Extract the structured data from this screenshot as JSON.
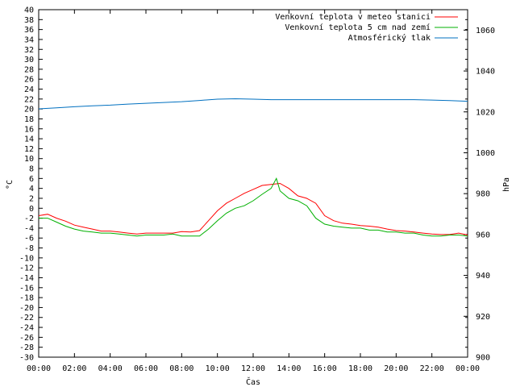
{
  "chart_data": {
    "type": "line",
    "xlabel": "Čas",
    "ylabel_left": "°C",
    "ylabel_right": "hPa",
    "x_ticks": [
      "00:00",
      "02:00",
      "04:00",
      "06:00",
      "08:00",
      "10:00",
      "12:00",
      "14:00",
      "16:00",
      "18:00",
      "20:00",
      "22:00",
      "00:00"
    ],
    "x_range": [
      0,
      24
    ],
    "ylim_left": [
      -30,
      40
    ],
    "ylim_right": [
      900,
      1070
    ],
    "y_left_ticks": [
      40,
      38,
      36,
      34,
      32,
      30,
      28,
      26,
      24,
      22,
      20,
      18,
      16,
      14,
      12,
      10,
      8,
      6,
      4,
      2,
      0,
      -2,
      -4,
      -6,
      -8,
      -10,
      -12,
      -14,
      -16,
      -18,
      -20,
      -22,
      -24,
      -26,
      -28,
      -30
    ],
    "y_right_ticks": [
      1060,
      1040,
      1020,
      1000,
      980,
      960,
      940,
      920,
      900
    ],
    "grid": false,
    "legend_position": "top-right",
    "series": [
      {
        "name": "Venkovní teplota v meteo stanici",
        "axis": "left",
        "color": "#ff0000",
        "x": [
          0,
          0.5,
          1,
          1.5,
          2,
          2.5,
          3,
          3.5,
          4,
          4.5,
          5,
          5.5,
          6,
          6.5,
          7,
          7.5,
          8,
          8.5,
          9,
          9.5,
          10,
          10.5,
          11,
          11.5,
          12,
          12.5,
          13,
          13.5,
          14,
          14.5,
          15,
          15.5,
          16,
          16.5,
          17,
          17.5,
          18,
          18.5,
          19,
          19.5,
          20,
          20.5,
          21,
          21.5,
          22,
          22.5,
          23,
          23.5,
          24
        ],
        "values": [
          -1.5,
          -1.2,
          -2.0,
          -2.6,
          -3.4,
          -3.8,
          -4.2,
          -4.6,
          -4.6,
          -4.8,
          -5.0,
          -5.2,
          -5.0,
          -5.0,
          -5.0,
          -5.0,
          -4.7,
          -4.8,
          -4.5,
          -2.5,
          -0.5,
          1.0,
          2.0,
          3.0,
          3.8,
          4.6,
          4.8,
          5.0,
          4.0,
          2.5,
          2.0,
          1.0,
          -1.5,
          -2.5,
          -3.0,
          -3.2,
          -3.5,
          -3.6,
          -3.8,
          -4.2,
          -4.5,
          -4.6,
          -4.8,
          -5.0,
          -5.2,
          -5.3,
          -5.3,
          -5.0,
          -5.4
        ]
      },
      {
        "name": "Venkovní teplota 5 cm nad zemí",
        "axis": "left",
        "color": "#00b000",
        "x": [
          0,
          0.5,
          1,
          1.5,
          2,
          2.5,
          3,
          3.5,
          4,
          4.5,
          5,
          5.5,
          6,
          6.5,
          7,
          7.5,
          8,
          8.5,
          9,
          9.5,
          10,
          10.5,
          11,
          11.5,
          12,
          12.5,
          13,
          13.3,
          13.5,
          14,
          14.5,
          15,
          15.5,
          16,
          16.5,
          17,
          17.5,
          18,
          18.5,
          19,
          19.5,
          20,
          20.5,
          21,
          21.5,
          22,
          22.5,
          23,
          23.5,
          24
        ],
        "values": [
          -2.0,
          -2.0,
          -2.8,
          -3.6,
          -4.2,
          -4.6,
          -4.8,
          -5.0,
          -5.0,
          -5.2,
          -5.4,
          -5.6,
          -5.4,
          -5.4,
          -5.4,
          -5.2,
          -5.6,
          -5.6,
          -5.6,
          -4.2,
          -2.5,
          -1.0,
          0.0,
          0.5,
          1.5,
          2.8,
          4.0,
          6.0,
          3.5,
          2.0,
          1.5,
          0.5,
          -2.0,
          -3.2,
          -3.6,
          -3.8,
          -4.0,
          -4.0,
          -4.4,
          -4.4,
          -4.8,
          -4.8,
          -5.0,
          -5.0,
          -5.4,
          -5.6,
          -5.6,
          -5.4,
          -5.4,
          -5.6
        ]
      },
      {
        "name": "Atmosférický tlak",
        "axis": "right",
        "color": "#0070c0",
        "x": [
          0,
          1,
          2,
          3,
          4,
          5,
          6,
          7,
          8,
          9,
          10,
          11,
          12,
          13,
          14,
          15,
          16,
          17,
          18,
          19,
          20,
          21,
          22,
          23,
          24
        ],
        "values": [
          1021.5,
          1022.0,
          1022.5,
          1023.0,
          1023.3,
          1023.8,
          1024.2,
          1024.6,
          1025.0,
          1025.6,
          1026.2,
          1026.4,
          1026.2,
          1026.0,
          1026.0,
          1026.0,
          1026.0,
          1026.0,
          1026.0,
          1026.0,
          1026.0,
          1026.0,
          1025.8,
          1025.5,
          1025.2
        ]
      }
    ]
  }
}
